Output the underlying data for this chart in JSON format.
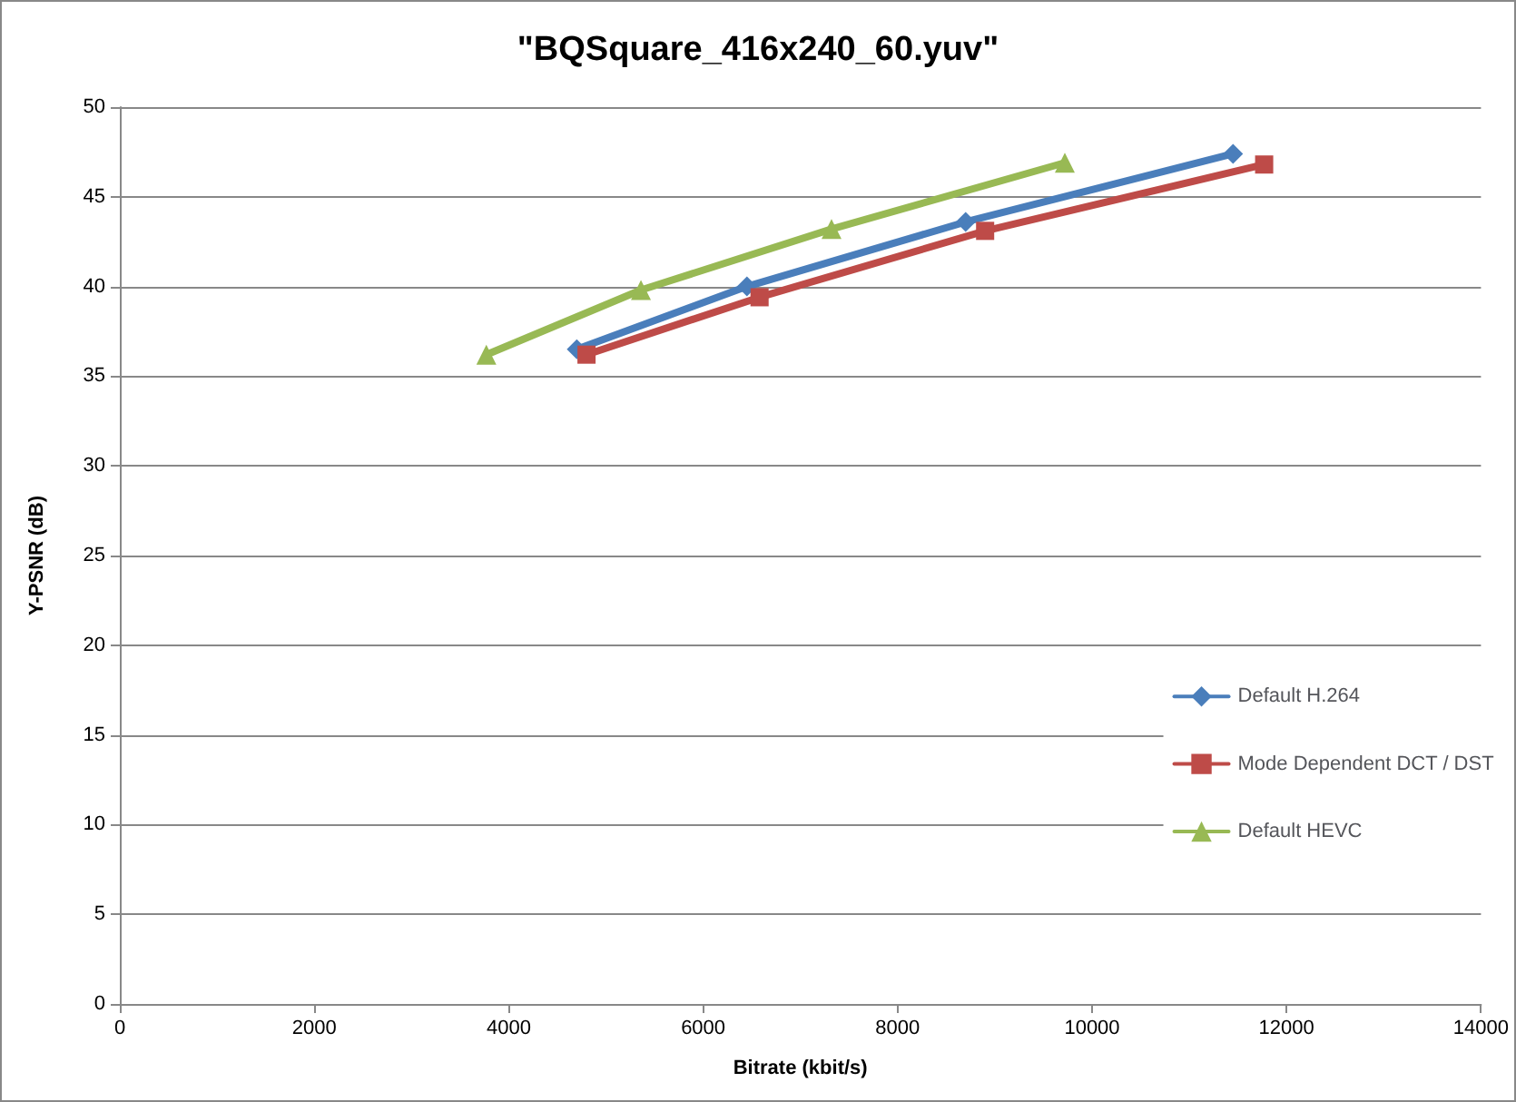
{
  "chart_data": {
    "type": "line",
    "title": "\"BQSquare_416x240_60.yuv\"",
    "xlabel": "Bitrate (kbit/s)",
    "ylabel": "Y-PSNR (dB)",
    "xlim": [
      0,
      14000
    ],
    "xticks": [
      0,
      2000,
      4000,
      6000,
      8000,
      10000,
      12000,
      14000
    ],
    "ylim": [
      0,
      50
    ],
    "yticks": [
      0,
      5,
      10,
      15,
      20,
      25,
      30,
      35,
      40,
      45,
      50
    ],
    "grid": "y",
    "legend": "right",
    "line_style": "solid",
    "series": [
      {
        "name": "Default H.264",
        "color": "#4a7ebb",
        "marker": "diamond",
        "x": [
          4700,
          6450,
          8700,
          11450
        ],
        "values": [
          36.5,
          40.0,
          43.6,
          47.4
        ]
      },
      {
        "name": "Mode Dependent DCT / DST",
        "color": "#be4b48",
        "marker": "square",
        "x": [
          4800,
          6580,
          8900,
          11770
        ],
        "values": [
          36.2,
          39.4,
          43.1,
          46.8
        ]
      },
      {
        "name": "Default HEVC",
        "color": "#98b954",
        "marker": "triangle",
        "x": [
          3770,
          5360,
          7320,
          9720
        ],
        "values": [
          36.2,
          39.8,
          43.2,
          46.9
        ]
      }
    ]
  }
}
